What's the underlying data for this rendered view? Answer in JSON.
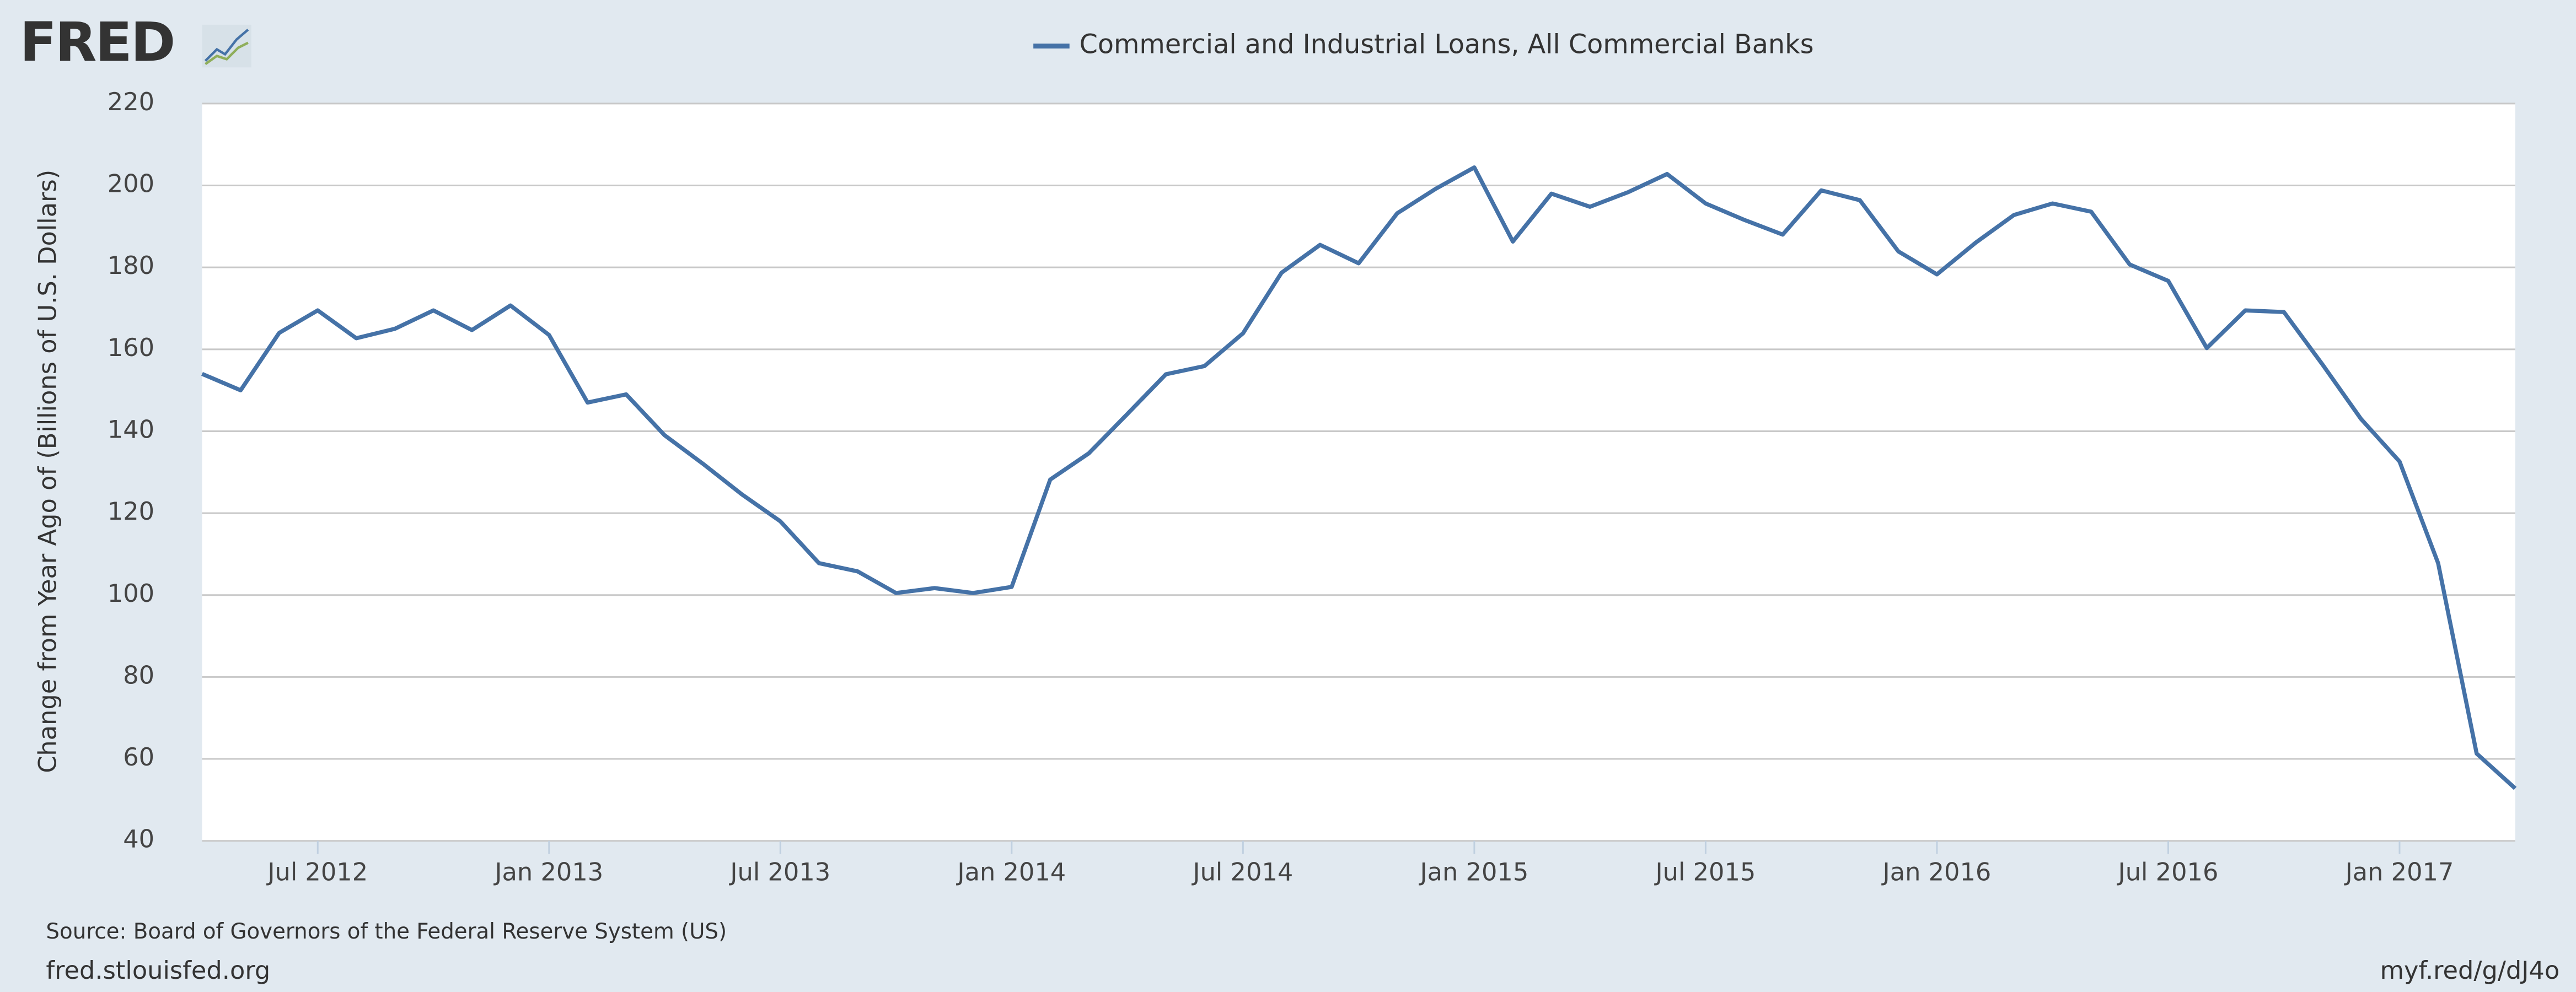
{
  "logo": "FRED",
  "source": "Source: Board of Governors of the Federal Reserve System (US)",
  "site": "fred.stlouisfed.org",
  "short_link": "myf.red/g/dJ4o",
  "chart_data": {
    "type": "line",
    "y_label": "Change from Year Ago of (Billions of U.S. Dollars)",
    "x": [
      "2012-04",
      "2012-05",
      "2012-06",
      "2012-07",
      "2012-08",
      "2012-09",
      "2012-10",
      "2012-11",
      "2012-12",
      "2013-01",
      "2013-02",
      "2013-03",
      "2013-04",
      "2013-05",
      "2013-06",
      "2013-07",
      "2013-08",
      "2013-09",
      "2013-10",
      "2013-11",
      "2013-12",
      "2014-01",
      "2014-02",
      "2014-03",
      "2014-04",
      "2014-05",
      "2014-06",
      "2014-07",
      "2014-08",
      "2014-09",
      "2014-10",
      "2014-11",
      "2014-12",
      "2015-01",
      "2015-02",
      "2015-03",
      "2015-04",
      "2015-05",
      "2015-06",
      "2015-07",
      "2015-08",
      "2015-09",
      "2015-10",
      "2015-11",
      "2015-12",
      "2016-01",
      "2016-02",
      "2016-03",
      "2016-04",
      "2016-05",
      "2016-06",
      "2016-07",
      "2016-08",
      "2016-09",
      "2016-10",
      "2016-11",
      "2016-12",
      "2017-01",
      "2017-02",
      "2017-03",
      "2017-04"
    ],
    "series": [
      {
        "name": "Commercial and Industrial Loans, All Commercial Banks",
        "color": "#4572a7",
        "values": [
          154,
          150,
          164,
          169.5,
          162.7,
          165,
          169.5,
          164.7,
          170.7,
          163.5,
          147,
          149,
          139,
          132,
          124.6,
          118,
          107.8,
          105.8,
          100.5,
          101.7,
          100.5,
          102,
          128.2,
          134.6,
          144.2,
          153.9,
          155.9,
          163.9,
          178.7,
          185.5,
          181,
          193.2,
          199.2,
          204.4,
          186.3,
          198,
          194.8,
          198.4,
          202.8,
          195.6,
          191.6,
          188,
          198.8,
          196.4,
          183.9,
          178.3,
          186,
          192.8,
          195.6,
          193.6,
          180.7,
          176.7,
          160.3,
          169.5,
          169.1,
          156.3,
          143,
          132.6,
          107.8,
          61.3,
          52.8
        ]
      }
    ],
    "xlim": [
      "2012-04",
      "2017-04"
    ],
    "xticks": [
      {
        "value": "2012-07",
        "label": "Jul 2012"
      },
      {
        "value": "2013-01",
        "label": "Jan 2013"
      },
      {
        "value": "2013-07",
        "label": "Jul 2013"
      },
      {
        "value": "2014-01",
        "label": "Jan 2014"
      },
      {
        "value": "2014-07",
        "label": "Jul 2014"
      },
      {
        "value": "2015-01",
        "label": "Jan 2015"
      },
      {
        "value": "2015-07",
        "label": "Jul 2015"
      },
      {
        "value": "2016-01",
        "label": "Jan 2016"
      },
      {
        "value": "2016-07",
        "label": "Jul 2016"
      },
      {
        "value": "2017-01",
        "label": "Jan 2017"
      }
    ],
    "ylim": [
      40,
      220
    ],
    "yticks": [
      40,
      60,
      80,
      100,
      120,
      140,
      160,
      180,
      200,
      220
    ],
    "grid": true
  }
}
